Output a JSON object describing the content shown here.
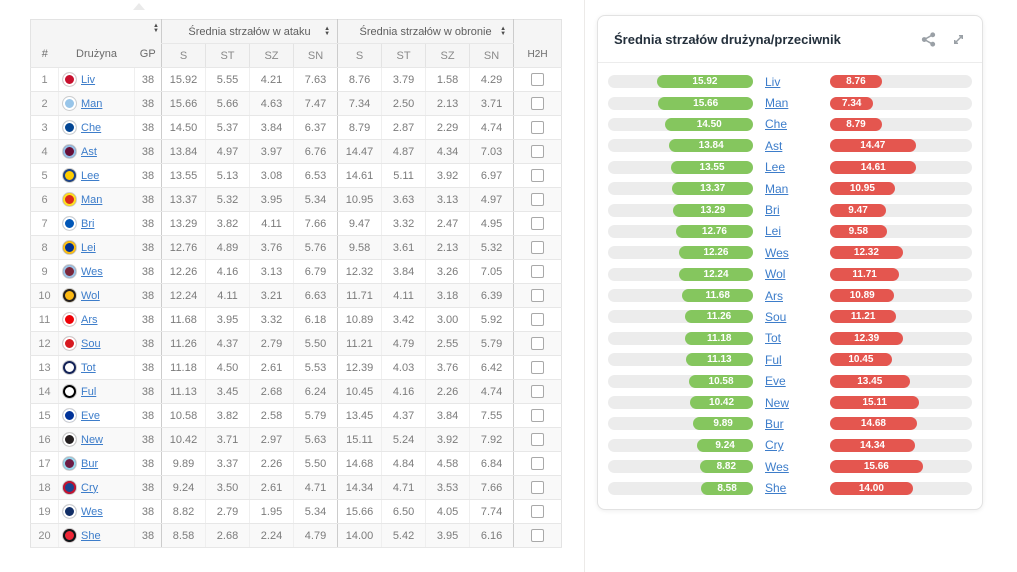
{
  "table": {
    "headers": {
      "rank": "#",
      "team": "Drużyna",
      "gp": "GP",
      "attack_group": "Średnia strzałów w ataku",
      "defense_group": "Średnia strzałów w obronie",
      "sub_columns": [
        "S",
        "ST",
        "SZ",
        "SN"
      ],
      "h2h": "H2H"
    },
    "rows": [
      {
        "rank": "1",
        "team": "Liv",
        "gp": "38",
        "attack": [
          "15.92",
          "5.55",
          "4.21",
          "7.63"
        ],
        "defense": [
          "8.76",
          "3.79",
          "1.58",
          "4.29"
        ],
        "badge": {
          "primary": "#c8102e",
          "secondary": "#ffffff"
        }
      },
      {
        "rank": "2",
        "team": "Man",
        "gp": "38",
        "attack": [
          "15.66",
          "5.66",
          "4.63",
          "7.47"
        ],
        "defense": [
          "7.34",
          "2.50",
          "2.13",
          "3.71"
        ],
        "badge": {
          "primary": "#98c5e9",
          "secondary": "#ffffff"
        }
      },
      {
        "rank": "3",
        "team": "Che",
        "gp": "38",
        "attack": [
          "14.50",
          "5.37",
          "3.84",
          "6.37"
        ],
        "defense": [
          "8.79",
          "2.87",
          "2.29",
          "4.74"
        ],
        "badge": {
          "primary": "#034694",
          "secondary": "#ffffff"
        }
      },
      {
        "rank": "4",
        "team": "Ast",
        "gp": "38",
        "attack": [
          "13.84",
          "4.97",
          "3.97",
          "6.76"
        ],
        "defense": [
          "14.47",
          "4.87",
          "4.34",
          "7.03"
        ],
        "badge": {
          "primary": "#670e36",
          "secondary": "#95bfe5"
        }
      },
      {
        "rank": "5",
        "team": "Lee",
        "gp": "38",
        "attack": [
          "13.55",
          "5.13",
          "3.08",
          "6.53"
        ],
        "defense": [
          "14.61",
          "5.11",
          "3.92",
          "6.97"
        ],
        "badge": {
          "primary": "#ffcd00",
          "secondary": "#1d428a"
        }
      },
      {
        "rank": "6",
        "team": "Man",
        "gp": "38",
        "attack": [
          "13.37",
          "5.32",
          "3.95",
          "5.34"
        ],
        "defense": [
          "10.95",
          "3.63",
          "3.13",
          "4.97"
        ],
        "badge": {
          "primary": "#da291c",
          "secondary": "#fbe122"
        }
      },
      {
        "rank": "7",
        "team": "Bri",
        "gp": "38",
        "attack": [
          "13.29",
          "3.82",
          "4.11",
          "7.66"
        ],
        "defense": [
          "9.47",
          "3.32",
          "2.47",
          "4.95"
        ],
        "badge": {
          "primary": "#0057b8",
          "secondary": "#ffffff"
        }
      },
      {
        "rank": "8",
        "team": "Lei",
        "gp": "38",
        "attack": [
          "12.76",
          "4.89",
          "3.76",
          "5.76"
        ],
        "defense": [
          "9.58",
          "3.61",
          "2.13",
          "5.32"
        ],
        "badge": {
          "primary": "#003090",
          "secondary": "#fdbe11"
        }
      },
      {
        "rank": "9",
        "team": "Wes",
        "gp": "38",
        "attack": [
          "12.26",
          "4.16",
          "3.13",
          "6.79"
        ],
        "defense": [
          "12.32",
          "3.84",
          "3.26",
          "7.05"
        ],
        "badge": {
          "primary": "#7a263a",
          "secondary": "#9cc3e5"
        }
      },
      {
        "rank": "10",
        "team": "Wol",
        "gp": "38",
        "attack": [
          "12.24",
          "4.11",
          "3.21",
          "6.63"
        ],
        "defense": [
          "11.71",
          "4.11",
          "3.18",
          "6.39"
        ],
        "badge": {
          "primary": "#fdb913",
          "secondary": "#231f20"
        }
      },
      {
        "rank": "11",
        "team": "Ars",
        "gp": "38",
        "attack": [
          "11.68",
          "3.95",
          "3.32",
          "6.18"
        ],
        "defense": [
          "10.89",
          "3.42",
          "3.00",
          "5.92"
        ],
        "badge": {
          "primary": "#ef0107",
          "secondary": "#ffffff"
        }
      },
      {
        "rank": "12",
        "team": "Sou",
        "gp": "38",
        "attack": [
          "11.26",
          "4.37",
          "2.79",
          "5.50"
        ],
        "defense": [
          "11.21",
          "4.79",
          "2.55",
          "5.79"
        ],
        "badge": {
          "primary": "#d71920",
          "secondary": "#ffffff"
        }
      },
      {
        "rank": "13",
        "team": "Tot",
        "gp": "38",
        "attack": [
          "11.18",
          "4.50",
          "2.61",
          "5.53"
        ],
        "defense": [
          "12.39",
          "4.03",
          "3.76",
          "6.42"
        ],
        "badge": {
          "primary": "#ffffff",
          "secondary": "#132257"
        }
      },
      {
        "rank": "14",
        "team": "Ful",
        "gp": "38",
        "attack": [
          "11.13",
          "3.45",
          "2.68",
          "6.24"
        ],
        "defense": [
          "10.45",
          "4.16",
          "2.26",
          "4.74"
        ],
        "badge": {
          "primary": "#ffffff",
          "secondary": "#000000"
        }
      },
      {
        "rank": "15",
        "team": "Eve",
        "gp": "38",
        "attack": [
          "10.58",
          "3.82",
          "2.58",
          "5.79"
        ],
        "defense": [
          "13.45",
          "4.37",
          "3.84",
          "7.55"
        ],
        "badge": {
          "primary": "#003399",
          "secondary": "#ffffff"
        }
      },
      {
        "rank": "16",
        "team": "New",
        "gp": "38",
        "attack": [
          "10.42",
          "3.71",
          "2.97",
          "5.63"
        ],
        "defense": [
          "15.11",
          "5.24",
          "3.92",
          "7.92"
        ],
        "badge": {
          "primary": "#241f20",
          "secondary": "#ffffff"
        }
      },
      {
        "rank": "17",
        "team": "Bur",
        "gp": "38",
        "attack": [
          "9.89",
          "3.37",
          "2.26",
          "5.50"
        ],
        "defense": [
          "14.68",
          "4.84",
          "4.58",
          "6.84"
        ],
        "badge": {
          "primary": "#6c1d45",
          "secondary": "#99d6ea"
        }
      },
      {
        "rank": "18",
        "team": "Cry",
        "gp": "38",
        "attack": [
          "9.24",
          "3.50",
          "2.61",
          "4.71"
        ],
        "defense": [
          "14.34",
          "4.71",
          "3.53",
          "7.66"
        ],
        "badge": {
          "primary": "#1b458f",
          "secondary": "#c4122e"
        }
      },
      {
        "rank": "19",
        "team": "Wes",
        "gp": "38",
        "attack": [
          "8.82",
          "2.79",
          "1.95",
          "5.34"
        ],
        "defense": [
          "15.66",
          "6.50",
          "4.05",
          "7.74"
        ],
        "badge": {
          "primary": "#122f67",
          "secondary": "#ffffff"
        }
      },
      {
        "rank": "20",
        "team": "She",
        "gp": "38",
        "attack": [
          "8.58",
          "2.68",
          "2.24",
          "4.79"
        ],
        "defense": [
          "14.00",
          "5.42",
          "3.95",
          "6.16"
        ],
        "badge": {
          "primary": "#ee2737",
          "secondary": "#0d171a"
        }
      }
    ]
  },
  "chart_panel": {
    "title": "Średnia strzałów drużyna/przeciwnik",
    "icons": [
      "share-icon",
      "expand-icon"
    ]
  },
  "chart_data": {
    "type": "bar",
    "orientation": "horizontal",
    "title": "Średnia strzałów drużyna/przeciwnik",
    "categories": [
      "Liv",
      "Man",
      "Che",
      "Ast",
      "Lee",
      "Man",
      "Bri",
      "Lei",
      "Wes",
      "Wol",
      "Ars",
      "Sou",
      "Tot",
      "Ful",
      "Eve",
      "New",
      "Bur",
      "Cry",
      "Wes",
      "She"
    ],
    "series": [
      {
        "name": "drużyna",
        "color": "#85c65e",
        "values": [
          "15.92",
          "15.66",
          "14.50",
          "13.84",
          "13.55",
          "13.37",
          "13.29",
          "12.76",
          "12.26",
          "12.24",
          "11.68",
          "11.26",
          "11.18",
          "11.13",
          "10.58",
          "10.42",
          "9.89",
          "9.24",
          "8.82",
          "8.58"
        ]
      },
      {
        "name": "przeciwnik",
        "color": "#e4564f",
        "values": [
          "8.76",
          "7.34",
          "8.79",
          "14.47",
          "14.61",
          "10.95",
          "9.47",
          "9.58",
          "12.32",
          "11.71",
          "10.89",
          "11.21",
          "12.39",
          "10.45",
          "13.45",
          "15.11",
          "14.68",
          "14.34",
          "15.66",
          "14.00"
        ]
      }
    ],
    "xlim": [
      0,
      24
    ],
    "value_labels": true,
    "track_color": "#ececec",
    "legend_position": "none",
    "grid": false
  },
  "colors": {
    "attack_bar": "#85c65e",
    "defense_bar": "#e4564f",
    "bar_track": "#ececec",
    "link": "#3d7dca"
  }
}
